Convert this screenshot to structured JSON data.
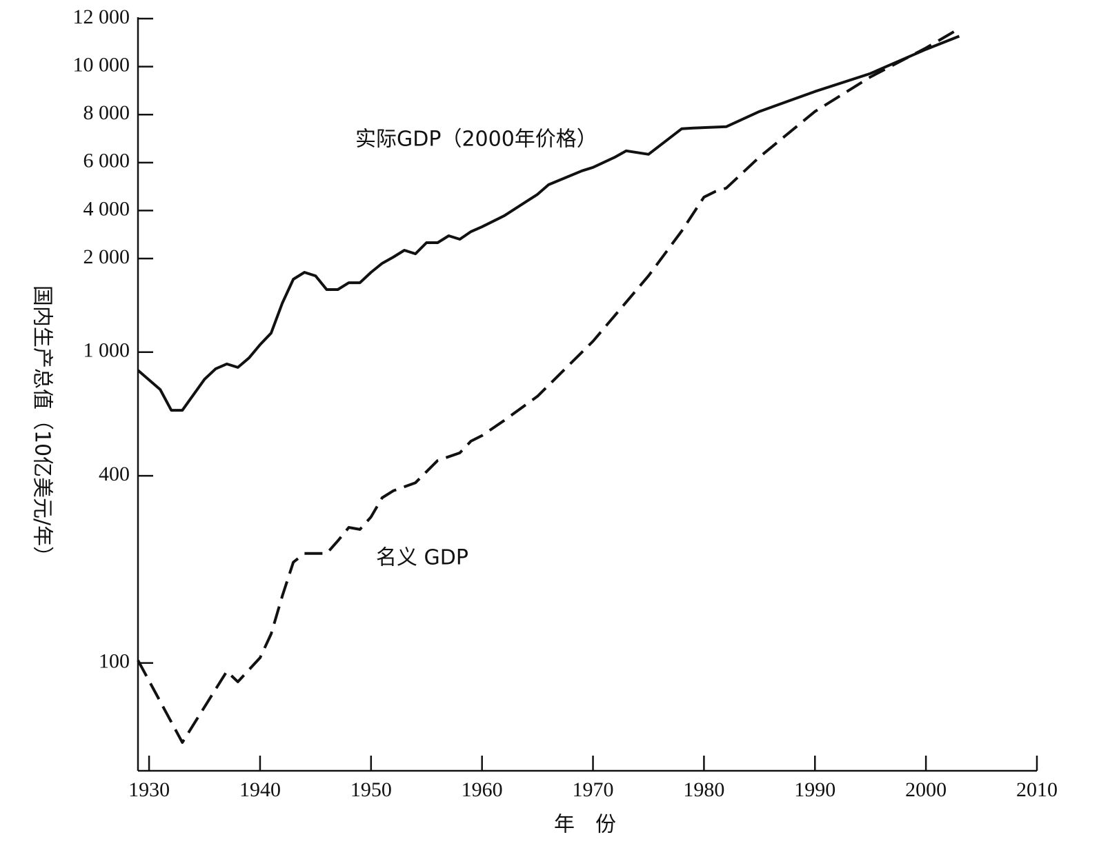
{
  "chart_data": {
    "type": "line",
    "xlabel": "年　份",
    "ylabel": "国内生产总值（10亿美元/年）",
    "yscale": "log-linear",
    "xlim": [
      1929,
      2010
    ],
    "xticks": [
      1930,
      1940,
      1950,
      1960,
      1970,
      1980,
      1990,
      2000,
      2010
    ],
    "ylim": [
      45,
      12000
    ],
    "yticks": [
      100,
      400,
      {
        "value": 1000,
        "label": "1 000"
      },
      {
        "value": 2000,
        "label": "2 000"
      },
      {
        "value": 4000,
        "label": "4 000"
      },
      {
        "value": 6000,
        "label": "6 000"
      },
      {
        "value": 8000,
        "label": "8 000"
      },
      {
        "value": 10000,
        "label": "10 000"
      },
      {
        "value": 12000,
        "label": "12 000"
      }
    ],
    "series": [
      {
        "name": "实际GDP（2000年价格）",
        "color": "#111111",
        "style": "solid",
        "x": [
          1929,
          1931,
          1932,
          1933,
          1935,
          1936,
          1937,
          1938,
          1939,
          1940,
          1941,
          1942,
          1943,
          1944,
          1945,
          1946,
          1947,
          1948,
          1949,
          1950,
          1951,
          1952,
          1953,
          1954,
          1955,
          1956,
          1957,
          1958,
          1959,
          1960,
          1962,
          1965,
          1966,
          1969,
          1970,
          1972,
          1973,
          1975,
          1978,
          1979,
          1982,
          1985,
          1990,
          1995,
          2000,
          2003
        ],
        "values": [
          874,
          758,
          650,
          650,
          818,
          884,
          916,
          893,
          958,
          1057,
          1152,
          1436,
          1716,
          1806,
          1760,
          1590,
          1590,
          1672,
          1672,
          1806,
          1930,
          2058,
          2345,
          2200,
          2662,
          2662,
          2950,
          2806,
          3122,
          3324,
          3784,
          4676,
          5079,
          5655,
          5799,
          6230,
          6489,
          6345,
          7410,
          7439,
          7496,
          8129,
          8964,
          9712,
          10719,
          11266
        ]
      },
      {
        "name": "名义 GDP",
        "color": "#111111",
        "style": "dashed",
        "x": [
          1929,
          1933,
          1937,
          1938,
          1940,
          1941,
          1942,
          1943,
          1944,
          1945,
          1946,
          1947,
          1948,
          1949,
          1950,
          1951,
          1952,
          1954,
          1956,
          1958,
          1959,
          1960,
          1962,
          1965,
          1970,
          1975,
          1978,
          1980,
          1981,
          1982,
          1985,
          1990,
          1995,
          2000,
          2003
        ],
        "values": [
          102,
          55.5,
          94,
          87,
          104,
          124,
          164,
          211,
          225,
          225,
          225,
          247,
          273,
          269,
          295,
          340,
          358,
          380,
          448,
          474,
          517,
          539,
          603,
          721,
          1084,
          1760,
          3151,
          4561,
          4791,
          4935,
          6230,
          8129,
          9568,
          10777,
          11583
        ]
      }
    ]
  }
}
